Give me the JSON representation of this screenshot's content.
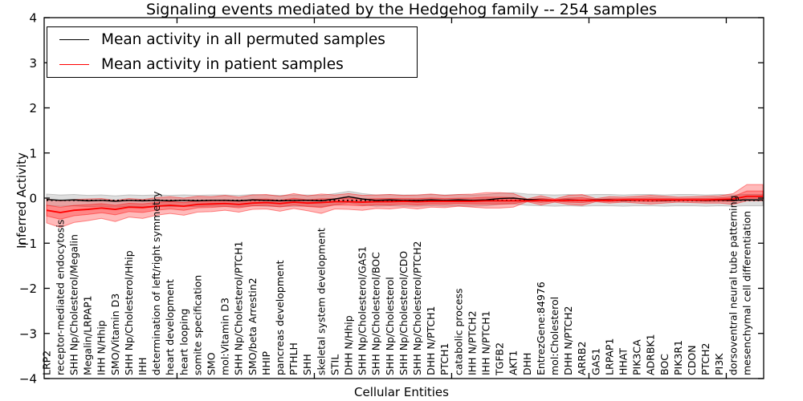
{
  "figure": {
    "title": "Signaling events mediated by the Hedgehog family -- 254 samples",
    "xlabel": "Cellular Entities",
    "ylabel": "Inferred Activity"
  },
  "legend": {
    "position": "upper left",
    "items": [
      {
        "label": "Mean activity in all permuted samples",
        "color": "#000000"
      },
      {
        "label": "Mean activity in patient samples",
        "color": "#ff0000"
      }
    ]
  },
  "axes": {
    "ylim": [
      -4,
      4
    ],
    "yticks": [
      4,
      3,
      2,
      1,
      0,
      -1,
      -2,
      -3,
      -4
    ],
    "xtick_marker_positions": [
      9.5,
      19.5,
      29.5,
      39.5,
      49.5
    ],
    "grid": false,
    "frame_color": "#000000"
  },
  "chart_data": {
    "type": "line",
    "title": "Signaling events mediated by the Hedgehog family -- 254 samples",
    "xlabel": "Cellular Entities",
    "ylabel": "Inferred Activity",
    "ylim": [
      -4,
      4
    ],
    "legend_position": "upper left",
    "grid": false,
    "categories": [
      "LRP2",
      "receptor-mediated endocytosis",
      "SHH Np/Cholesterol/Megalin",
      "Megalin/LRPAP1",
      "IHH N/Hhip",
      "SMO/Vitamin D3",
      "SHH Np/Cholesterol/Hhip",
      "IHH",
      "determination of left/right symmetry",
      "heart development",
      "heart looping",
      "somite specification",
      "SMO",
      "mol:Vitamin D3",
      "SHH Np/Cholesterol/PTCH1",
      "SMO/beta Arrestin2",
      "HHIP",
      "pancreas development",
      "PTHLH",
      "SHH",
      "skeletal system development",
      "STIL",
      "DHH N/Hhip",
      "SHH Np/Cholesterol/GAS1",
      "SHH Np/Cholesterol/BOC",
      "SHH Np/Cholesterol",
      "SHH Np/Cholesterol/CDO",
      "SHH Np/Cholesterol/PTCH2",
      "DHH N/PTCH1",
      "PTCH1",
      "catabolic process",
      "IHH N/PTCH2",
      "IHH N/PTCH1",
      "TGFB2",
      "AKT1",
      "DHH",
      "EntrezGene:84976",
      "mol:Cholesterol",
      "DHH N/PTCH2",
      "ARRB2",
      "GAS1",
      "LRPAP1",
      "HHAT",
      "PIK3CA",
      "ADRBK1",
      "BOC",
      "PIK3R1",
      "CDON",
      "PTCH2",
      "PI3K",
      "dorsoventral neural tube patterning",
      "mesenchymal cell differentiation"
    ],
    "series": [
      {
        "name": "Mean activity in all permuted samples",
        "color": "#000000",
        "style": "solid",
        "width": 1.4,
        "values": [
          -0.03,
          -0.05,
          -0.04,
          -0.06,
          -0.05,
          -0.07,
          -0.05,
          -0.06,
          -0.05,
          -0.06,
          -0.05,
          -0.06,
          -0.05,
          -0.05,
          -0.06,
          -0.04,
          -0.05,
          -0.06,
          -0.05,
          -0.05,
          -0.06,
          -0.02,
          0.03,
          -0.02,
          -0.05,
          -0.04,
          -0.05,
          -0.05,
          -0.04,
          -0.05,
          -0.04,
          -0.05,
          -0.04,
          -0.01,
          0.0,
          -0.03,
          -0.04,
          -0.05,
          -0.04,
          -0.05,
          -0.04,
          -0.04,
          -0.05,
          -0.04,
          -0.04,
          -0.05,
          -0.04,
          -0.04,
          -0.05,
          -0.04,
          -0.05,
          -0.04
        ]
      },
      {
        "name": "Mean activity in patient samples",
        "color": "#ff0000",
        "style": "solid",
        "width": 1.8,
        "values": [
          -0.27,
          -0.32,
          -0.27,
          -0.25,
          -0.22,
          -0.25,
          -0.2,
          -0.21,
          -0.18,
          -0.16,
          -0.18,
          -0.14,
          -0.13,
          -0.12,
          -0.14,
          -0.11,
          -0.1,
          -0.12,
          -0.09,
          -0.11,
          -0.1,
          -0.08,
          -0.08,
          -0.09,
          -0.08,
          -0.08,
          -0.07,
          -0.08,
          -0.07,
          -0.07,
          -0.07,
          -0.07,
          -0.06,
          -0.06,
          -0.06,
          -0.06,
          -0.05,
          -0.05,
          -0.05,
          -0.05,
          -0.05,
          -0.05,
          -0.04,
          -0.04,
          -0.04,
          -0.04,
          -0.04,
          -0.04,
          -0.04,
          -0.03,
          -0.02,
          0.04
        ]
      }
    ],
    "baseline": {
      "name": "permuted reference (dotted)",
      "color": "#000000",
      "style": "dotted",
      "value": -0.05
    },
    "bands": [
      {
        "name": "permuted-samples-spread",
        "color": "#8a8a8a",
        "opacity": 0.28,
        "upper": [
          0.09,
          0.07,
          0.08,
          0.06,
          0.07,
          0.05,
          0.07,
          0.06,
          0.07,
          0.06,
          0.07,
          0.06,
          0.07,
          0.07,
          0.06,
          0.08,
          0.07,
          0.06,
          0.07,
          0.07,
          0.06,
          0.1,
          0.15,
          0.1,
          0.07,
          0.08,
          0.07,
          0.07,
          0.08,
          0.07,
          0.08,
          0.07,
          0.08,
          0.11,
          0.12,
          0.09,
          0.08,
          0.07,
          0.08,
          0.07,
          0.08,
          0.08,
          0.07,
          0.08,
          0.08,
          0.07,
          0.08,
          0.08,
          0.07,
          0.08,
          0.07,
          0.08
        ],
        "lower": [
          -0.16,
          -0.18,
          -0.17,
          -0.19,
          -0.18,
          -0.2,
          -0.18,
          -0.19,
          -0.18,
          -0.19,
          -0.18,
          -0.19,
          -0.18,
          -0.18,
          -0.19,
          -0.17,
          -0.18,
          -0.19,
          -0.18,
          -0.18,
          -0.19,
          -0.15,
          -0.1,
          -0.15,
          -0.18,
          -0.17,
          -0.18,
          -0.18,
          -0.17,
          -0.18,
          -0.17,
          -0.18,
          -0.17,
          -0.14,
          -0.13,
          -0.16,
          -0.17,
          -0.18,
          -0.17,
          -0.18,
          -0.17,
          -0.17,
          -0.18,
          -0.17,
          -0.17,
          -0.18,
          -0.17,
          -0.17,
          -0.18,
          -0.17,
          -0.18,
          -0.17
        ]
      },
      {
        "name": "patient-samples-spread",
        "color": "#ff0000",
        "opacity": 0.27,
        "inner_core": true,
        "upper": [
          -0.02,
          -0.06,
          -0.03,
          -0.02,
          -0.01,
          -0.05,
          -0.01,
          -0.03,
          0.01,
          0.03,
          0.0,
          0.04,
          0.03,
          0.06,
          0.02,
          0.07,
          0.08,
          0.04,
          0.1,
          0.05,
          0.09,
          0.07,
          0.1,
          0.06,
          0.07,
          0.08,
          0.06,
          0.07,
          0.09,
          0.06,
          0.08,
          0.09,
          0.12,
          0.12,
          0.1,
          -0.02,
          0.05,
          -0.02,
          0.06,
          0.08,
          -0.01,
          0.03,
          0.02,
          0.04,
          0.06,
          0.04,
          0.02,
          0.03,
          0.04,
          0.05,
          0.1,
          0.3
        ],
        "lower": [
          -0.55,
          -0.65,
          -0.54,
          -0.5,
          -0.45,
          -0.52,
          -0.42,
          -0.45,
          -0.38,
          -0.34,
          -0.38,
          -0.31,
          -0.3,
          -0.27,
          -0.31,
          -0.25,
          -0.24,
          -0.29,
          -0.23,
          -0.28,
          -0.34,
          -0.24,
          -0.25,
          -0.27,
          -0.23,
          -0.24,
          -0.21,
          -0.24,
          -0.2,
          -0.21,
          -0.18,
          -0.2,
          -0.22,
          -0.22,
          -0.2,
          -0.08,
          -0.15,
          -0.09,
          -0.14,
          -0.16,
          -0.08,
          -0.11,
          -0.09,
          -0.11,
          -0.13,
          -0.11,
          -0.09,
          -0.1,
          -0.11,
          -0.11,
          -0.14,
          -0.06
        ]
      }
    ]
  }
}
